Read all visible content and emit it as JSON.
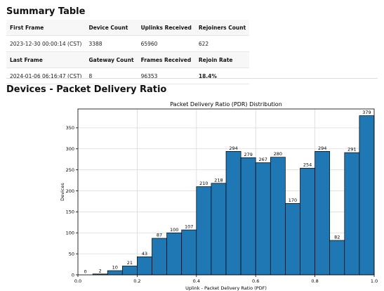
{
  "summary": {
    "title": "Summary Table",
    "rows": [
      {
        "kind": "head",
        "cells": [
          "First Frame",
          "Device Count",
          "Uplinks Received",
          "Rejoiners Count"
        ]
      },
      {
        "kind": "vals",
        "cells": [
          "2023-12-30 00:00:14 (CST)",
          "3388",
          "65960",
          "622"
        ]
      },
      {
        "kind": "head",
        "cells": [
          "Last Frame",
          "Gateway Count",
          "Frames Received",
          "Rejoin Rate"
        ]
      },
      {
        "kind": "vals",
        "cells": [
          "2024-01-06 06:16:47 (CST)",
          "8",
          "96353",
          "18.4%"
        ]
      }
    ]
  },
  "devices_section": {
    "title": "Devices - Packet Delivery Ratio"
  },
  "chart_data": {
    "type": "bar",
    "title": "Packet Delivery Ratio (PDR) Distribution",
    "xlabel": "Uplink - Packet Delivery Ratio (PDF)",
    "ylabel": "Devices",
    "xlim": [
      0,
      1
    ],
    "ylim": [
      0,
      395
    ],
    "bin_width": 0.05,
    "bins_start": [
      0.0,
      0.05,
      0.1,
      0.15,
      0.2,
      0.25,
      0.3,
      0.35,
      0.4,
      0.45,
      0.5,
      0.55,
      0.6,
      0.65,
      0.7,
      0.75,
      0.8,
      0.85,
      0.9,
      0.95
    ],
    "values": [
      0,
      2,
      10,
      21,
      43,
      87,
      100,
      107,
      210,
      218,
      294,
      279,
      267,
      280,
      170,
      254,
      294,
      82,
      291,
      379
    ],
    "x_ticks": [
      0.0,
      0.2,
      0.4,
      0.6,
      0.8,
      1.0
    ],
    "x_tick_labels": [
      "0.0",
      "0.2",
      "0.4",
      "0.6",
      "0.8",
      "1.0"
    ],
    "y_ticks": [
      0,
      50,
      100,
      150,
      200,
      250,
      300,
      350
    ],
    "y_tick_labels": [
      "0",
      "50",
      "100",
      "150",
      "200",
      "250",
      "300",
      "350"
    ],
    "grid": true,
    "bar_color": "#1f77b4"
  }
}
